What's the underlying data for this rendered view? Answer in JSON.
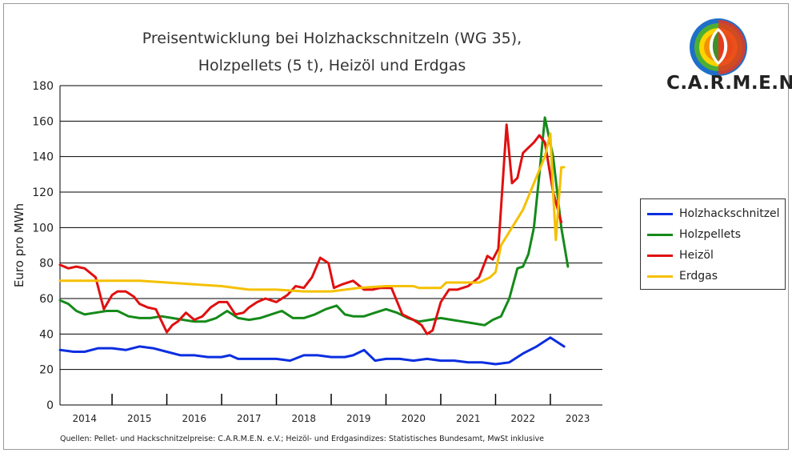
{
  "chart_data": {
    "type": "line",
    "title_line1": "Preisentwicklung bei Holzhackschnitzeln (WG 35),",
    "title_line2": "Holzpellets (5 t), Heizöl und Erdgas",
    "ylabel": "Euro pro MWh",
    "xlabel": "",
    "ylim": [
      0,
      180
    ],
    "yticks": [
      "0",
      "20",
      "40",
      "60",
      "80",
      "100",
      "120",
      "140",
      "160",
      "180"
    ],
    "x_tick_labels": [
      "2014",
      "2015",
      "2016",
      "2017",
      "2018",
      "2019",
      "2020",
      "2021",
      "2022",
      "2023"
    ],
    "x_range": [
      2013.55,
      2023.45
    ],
    "grid": "horizontal",
    "legend_position": "right",
    "series": [
      {
        "name": "Holzhackschnitzel",
        "color": "#0a2ee0",
        "x": [
          2013.55,
          2013.8,
          2014.0,
          2014.25,
          2014.5,
          2014.75,
          2015.0,
          2015.25,
          2015.5,
          2015.75,
          2016.0,
          2016.25,
          2016.5,
          2016.65,
          2016.8,
          2017.0,
          2017.25,
          2017.5,
          2017.75,
          2018.0,
          2018.25,
          2018.5,
          2018.75,
          2018.9,
          2019.1,
          2019.3,
          2019.5,
          2019.75,
          2020.0,
          2020.25,
          2020.5,
          2020.75,
          2021.0,
          2021.25,
          2021.5,
          2021.75,
          2022.0,
          2022.25,
          2022.5,
          2022.75
        ],
        "y": [
          31,
          30,
          30,
          32,
          32,
          31,
          33,
          32,
          30,
          28,
          28,
          27,
          27,
          28,
          26,
          26,
          26,
          26,
          25,
          28,
          28,
          27,
          27,
          28,
          31,
          25,
          26,
          26,
          25,
          26,
          25,
          25,
          24,
          24,
          23,
          24,
          29,
          33,
          38,
          33
        ]
      },
      {
        "name": "Holzpellets",
        "color": "#158a1a",
        "x": [
          2013.55,
          2013.7,
          2013.85,
          2014.0,
          2014.2,
          2014.4,
          2014.6,
          2014.8,
          2015.0,
          2015.2,
          2015.4,
          2015.6,
          2015.8,
          2016.0,
          2016.2,
          2016.4,
          2016.6,
          2016.8,
          2017.0,
          2017.2,
          2017.4,
          2017.6,
          2017.8,
          2018.0,
          2018.2,
          2018.4,
          2018.6,
          2018.75,
          2018.9,
          2019.1,
          2019.3,
          2019.5,
          2019.7,
          2019.9,
          2020.1,
          2020.3,
          2020.5,
          2020.7,
          2020.9,
          2021.1,
          2021.3,
          2021.45,
          2021.6,
          2021.75,
          2021.9,
          2022.0,
          2022.1,
          2022.2,
          2022.3,
          2022.4,
          2022.55,
          2022.7,
          2022.82
        ],
        "y": [
          59,
          57,
          53,
          51,
          52,
          53,
          53,
          50,
          49,
          49,
          50,
          49,
          48,
          47,
          47,
          49,
          53,
          49,
          48,
          49,
          51,
          53,
          49,
          49,
          51,
          54,
          56,
          51,
          50,
          50,
          52,
          54,
          52,
          49,
          47,
          48,
          49,
          48,
          47,
          46,
          45,
          48,
          50,
          60,
          77,
          78,
          85,
          100,
          130,
          162,
          140,
          100,
          78
        ]
      },
      {
        "name": "Heizöl",
        "color": "#e01010",
        "x": [
          2013.55,
          2013.7,
          2013.85,
          2014.0,
          2014.2,
          2014.35,
          2014.5,
          2014.6,
          2014.75,
          2014.9,
          2015.0,
          2015.15,
          2015.3,
          2015.5,
          2015.6,
          2015.7,
          2015.85,
          2016.0,
          2016.15,
          2016.3,
          2016.45,
          2016.6,
          2016.75,
          2016.9,
          2017.0,
          2017.15,
          2017.3,
          2017.5,
          2017.7,
          2017.85,
          2018.0,
          2018.15,
          2018.3,
          2018.45,
          2018.55,
          2018.7,
          2018.9,
          2019.1,
          2019.25,
          2019.4,
          2019.6,
          2019.8,
          2020.0,
          2020.15,
          2020.25,
          2020.35,
          2020.5,
          2020.65,
          2020.8,
          2021.0,
          2021.2,
          2021.35,
          2021.45,
          2021.55,
          2021.7,
          2021.8,
          2021.9,
          2022.0,
          2022.1,
          2022.2,
          2022.3,
          2022.4,
          2022.55,
          2022.7
        ],
        "y": [
          79,
          77,
          78,
          77,
          72,
          54,
          62,
          64,
          64,
          61,
          57,
          55,
          54,
          41,
          45,
          47,
          52,
          48,
          50,
          55,
          58,
          58,
          51,
          52,
          55,
          58,
          60,
          58,
          62,
          67,
          66,
          72,
          83,
          80,
          66,
          68,
          70,
          65,
          65,
          66,
          66,
          51,
          48,
          45,
          40,
          42,
          58,
          65,
          65,
          67,
          72,
          84,
          82,
          88,
          158,
          125,
          128,
          142,
          145,
          148,
          152,
          148,
          120,
          103
        ]
      },
      {
        "name": "Erdgas",
        "color": "#f5c000",
        "x": [
          2013.55,
          2014.0,
          2014.5,
          2015.0,
          2015.5,
          2016.0,
          2016.5,
          2017.0,
          2017.5,
          2018.0,
          2018.5,
          2019.0,
          2019.5,
          2020.0,
          2020.1,
          2020.5,
          2020.6,
          2021.0,
          2021.2,
          2021.4,
          2021.5,
          2021.6,
          2021.8,
          2022.0,
          2022.2,
          2022.4,
          2022.5,
          2022.55,
          2022.6,
          2022.7,
          2022.75
        ],
        "y": [
          70,
          70,
          70,
          70,
          69,
          68,
          67,
          65,
          65,
          64,
          64,
          66,
          67,
          67,
          66,
          66,
          69,
          69,
          69,
          72,
          75,
          90,
          100,
          110,
          125,
          140,
          153,
          120,
          93,
          134,
          134
        ]
      }
    ]
  },
  "logo_text": "C.A.R.M.E.N.",
  "source_note": "Quellen: Pellet- und Hackschnitzelpreise: C.A.R.M.E.N. e.V.; Heizöl- und Erdgasindizes: Statistisches Bundesamt, MwSt inklusive",
  "colors": {
    "logo_red": "#e63a1e",
    "logo_orange": "#f39200",
    "logo_yellow": "#fcd400",
    "logo_green": "#4caf32",
    "logo_blue": "#1e6fc9"
  }
}
